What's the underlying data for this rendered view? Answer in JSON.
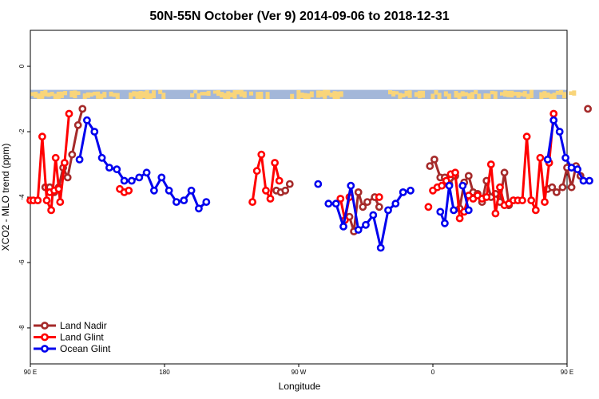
{
  "chart_data": {
    "type": "line",
    "title": "50N-55N October (Ver 9)   2014-09-06 to 2018-12-31",
    "xlabel": "Longitude",
    "ylabel": "XCO2 - MLO trend (ppm)",
    "xlim": [
      90,
      450
    ],
    "ylim": [
      -9.1,
      1.1
    ],
    "x_ticks": [
      {
        "value": 90,
        "label": "90 E"
      },
      {
        "value": 180,
        "label": "180"
      },
      {
        "value": 270,
        "label": "90 W"
      },
      {
        "value": 360,
        "label": "0"
      },
      {
        "value": 450,
        "label": "90 E"
      },
      {
        "value": 540,
        "label": "180"
      }
    ],
    "y_ticks": [
      {
        "value": 0,
        "label": "0"
      },
      {
        "value": -2,
        "label": "-2"
      },
      {
        "value": -4,
        "label": "-4"
      },
      {
        "value": -6,
        "label": "-6"
      },
      {
        "value": -8,
        "label": "-8"
      }
    ],
    "land_sea_band": {
      "y_range": [
        -1.0,
        -0.72
      ],
      "ocean_color": "#a3b7d9",
      "land_color": "#f9d57a"
    },
    "legend_position": "bottom-left",
    "series": [
      {
        "name": "Land Nadir",
        "color": "#a52a2a",
        "segments": [
          [
            [
              100,
              -3.7
            ],
            [
              103,
              -3.7
            ],
            [
              106,
              -3.85
            ],
            [
              109,
              -3.7
            ],
            [
              112,
              -3.1
            ],
            [
              115,
              -3.4
            ],
            [
              118,
              -2.7
            ],
            [
              122,
              -1.8
            ],
            [
              125,
              -1.3
            ]
          ],
          [
            [
              255,
              -3.8
            ],
            [
              258,
              -3.85
            ],
            [
              261,
              -3.8
            ],
            [
              264,
              -3.6
            ]
          ],
          [
            [
              304,
              -4.6
            ],
            [
              307,
              -5.05
            ],
            [
              310,
              -3.85
            ],
            [
              313,
              -4.3
            ],
            [
              316,
              -4.15
            ],
            [
              321,
              -4.0
            ],
            [
              324,
              -4.3
            ]
          ],
          [
            [
              358,
              -3.05
            ],
            [
              361,
              -2.85
            ],
            [
              365,
              -3.4
            ],
            [
              368,
              -3.4
            ],
            [
              371,
              -3.6
            ],
            [
              375,
              -3.35
            ],
            [
              378,
              -4.35
            ],
            [
              381,
              -3.55
            ],
            [
              384,
              -3.35
            ],
            [
              387,
              -3.85
            ],
            [
              390,
              -3.9
            ],
            [
              393,
              -4.15
            ],
            [
              396,
              -3.5
            ],
            [
              399,
              -4.0
            ],
            [
              402,
              -3.9
            ],
            [
              405,
              -4.15
            ],
            [
              408,
              -3.25
            ],
            [
              411,
              -4.25
            ],
            [
              414,
              -4.1
            ]
          ],
          [
            [
              437,
              -3.75
            ],
            [
              440,
              -3.7
            ],
            [
              443,
              -3.85
            ],
            [
              447,
              -3.7
            ],
            [
              450,
              -3.1
            ],
            [
              453,
              -3.7
            ],
            [
              456,
              -3.05
            ],
            [
              459,
              -3.35
            ]
          ],
          [
            [
              464,
              -1.3
            ]
          ]
        ]
      },
      {
        "name": "Land Glint",
        "color": "#ff0000",
        "segments": [
          [
            [
              90,
              -4.1
            ],
            [
              92,
              -4.1
            ],
            [
              95,
              -4.1
            ],
            [
              98,
              -2.15
            ],
            [
              101,
              -4.1
            ],
            [
              104,
              -4.4
            ],
            [
              107,
              -2.8
            ],
            [
              110,
              -4.15
            ],
            [
              113,
              -2.95
            ],
            [
              116,
              -1.45
            ]
          ],
          [
            [
              103,
              -3.85
            ],
            [
              106,
              -3.8
            ],
            [
              109,
              -3.75
            ]
          ],
          [
            [
              150,
              -3.75
            ],
            [
              153,
              -3.85
            ],
            [
              156,
              -3.8
            ]
          ],
          [
            [
              239,
              -4.15
            ],
            [
              242,
              -3.2
            ],
            [
              245,
              -2.7
            ],
            [
              248,
              -3.8
            ],
            [
              251,
              -4.05
            ],
            [
              254,
              -2.95
            ],
            [
              257,
              -3.5
            ]
          ],
          [
            [
              298,
              -4.05
            ],
            [
              301,
              -4.7
            ],
            [
              304,
              -4.0
            ]
          ],
          [
            [
              324,
              -4.0
            ]
          ],
          [
            [
              357,
              -4.3
            ]
          ],
          [
            [
              360,
              -3.8
            ],
            [
              363,
              -3.7
            ],
            [
              366,
              -3.65
            ],
            [
              369,
              -3.5
            ],
            [
              372,
              -3.3
            ],
            [
              375,
              -3.25
            ],
            [
              378,
              -4.65
            ],
            [
              381,
              -4.45
            ],
            [
              384,
              -3.95
            ],
            [
              387,
              -4.05
            ],
            [
              390,
              -3.95
            ],
            [
              393,
              -4.05
            ],
            [
              396,
              -4.0
            ],
            [
              399,
              -3.0
            ],
            [
              402,
              -4.5
            ],
            [
              405,
              -3.7
            ],
            [
              408,
              -4.25
            ],
            [
              411,
              -4.2
            ],
            [
              414,
              -4.1
            ],
            [
              417,
              -4.1
            ],
            [
              420,
              -4.1
            ],
            [
              423,
              -2.15
            ],
            [
              426,
              -4.1
            ],
            [
              429,
              -4.4
            ],
            [
              432,
              -2.8
            ],
            [
              435,
              -4.15
            ],
            [
              438,
              -2.95
            ],
            [
              441,
              -1.45
            ]
          ]
        ]
      },
      {
        "name": "Ocean Glint",
        "color": "#0000ee",
        "segments": [
          [
            [
              123,
              -2.85
            ],
            [
              128,
              -1.65
            ],
            [
              133,
              -2.0
            ],
            [
              138,
              -2.8
            ],
            [
              143,
              -3.1
            ],
            [
              148,
              -3.15
            ],
            [
              153,
              -3.5
            ],
            [
              158,
              -3.5
            ],
            [
              163,
              -3.4
            ],
            [
              168,
              -3.25
            ],
            [
              173,
              -3.8
            ],
            [
              178,
              -3.4
            ],
            [
              183,
              -3.8
            ],
            [
              188,
              -4.15
            ],
            [
              193,
              -4.1
            ],
            [
              198,
              -3.8
            ],
            [
              203,
              -4.35
            ],
            [
              208,
              -4.15
            ]
          ],
          [
            [
              283,
              -3.6
            ]
          ],
          [
            [
              290,
              -4.2
            ],
            [
              295,
              -4.2
            ],
            [
              300,
              -4.9
            ],
            [
              305,
              -3.65
            ],
            [
              310,
              -5.0
            ],
            [
              315,
              -4.85
            ],
            [
              320,
              -4.55
            ],
            [
              325,
              -5.55
            ],
            [
              330,
              -4.4
            ],
            [
              335,
              -4.2
            ],
            [
              340,
              -3.85
            ],
            [
              345,
              -3.8
            ]
          ],
          [
            [
              365,
              -4.45
            ],
            [
              368,
              -4.8
            ],
            [
              371,
              -3.65
            ],
            [
              374,
              -4.4
            ]
          ],
          [
            [
              380,
              -3.65
            ],
            [
              384,
              -4.4
            ]
          ],
          [
            [
              437,
              -2.85
            ],
            [
              441,
              -1.65
            ],
            [
              445,
              -2.0
            ],
            [
              449,
              -2.8
            ],
            [
              453,
              -3.1
            ],
            [
              457,
              -3.15
            ],
            [
              461,
              -3.5
            ],
            [
              465,
              -3.5
            ]
          ]
        ]
      }
    ]
  }
}
